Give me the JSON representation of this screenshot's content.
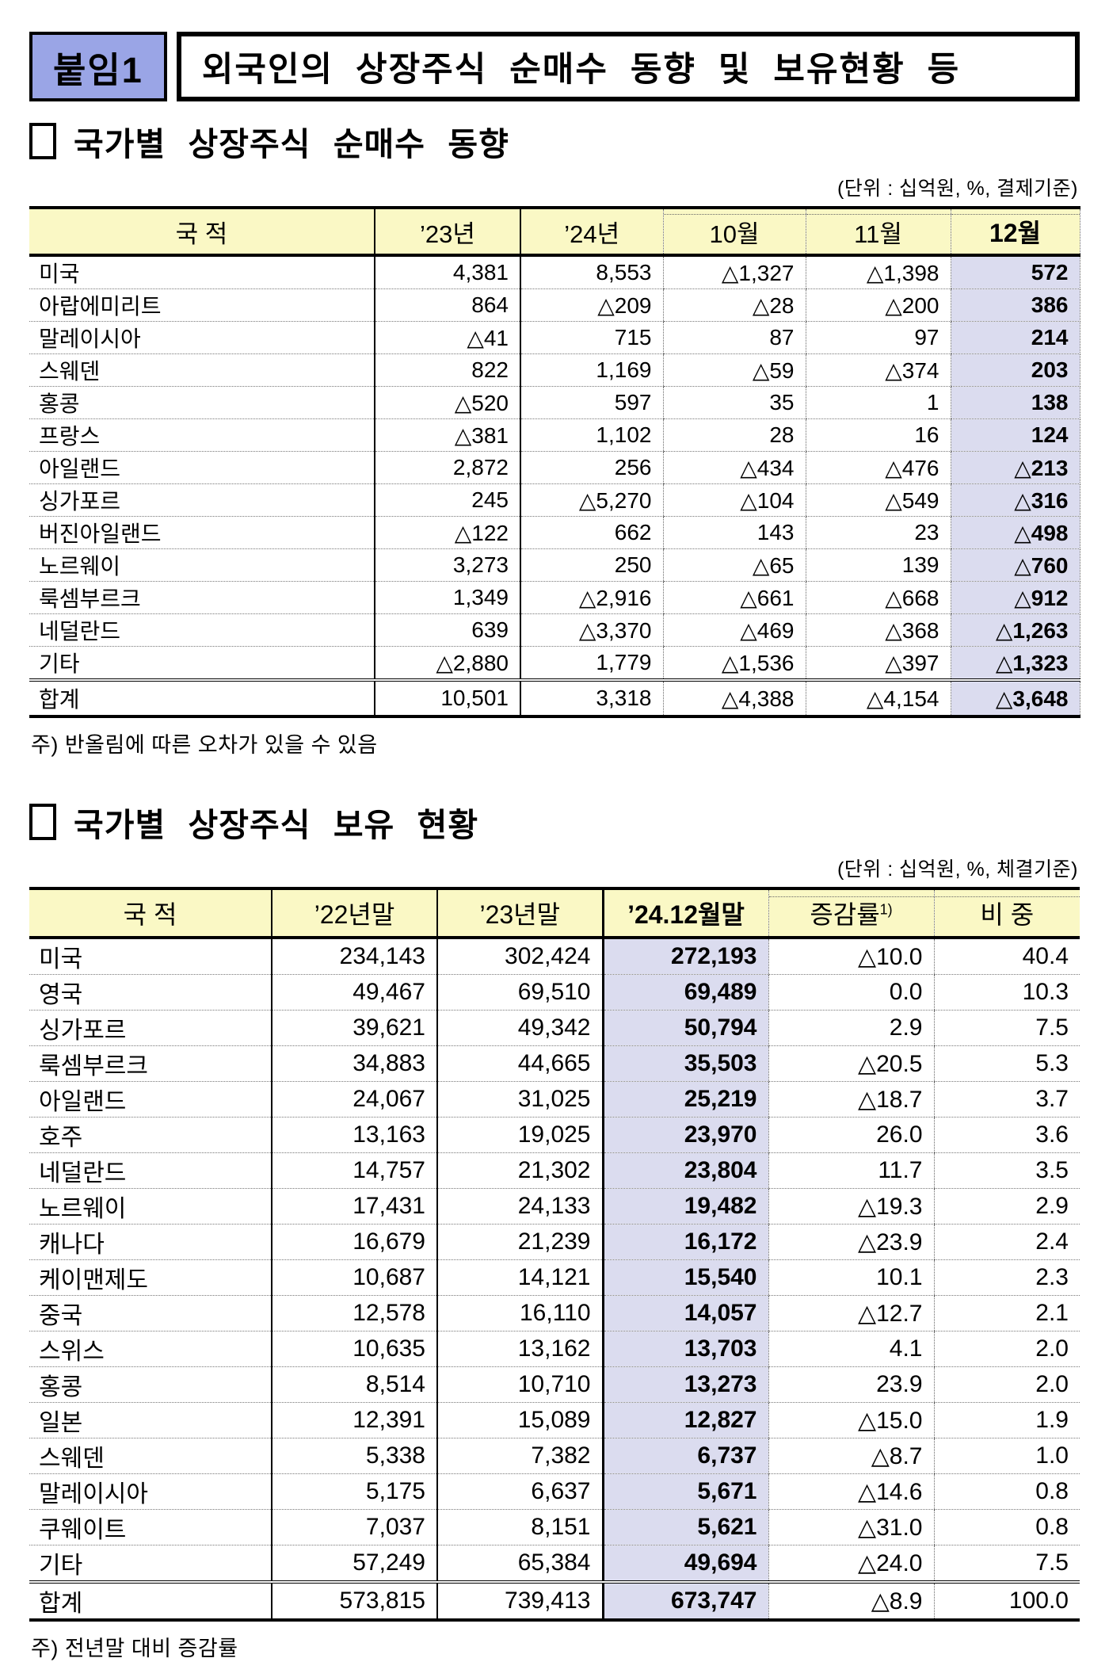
{
  "document": {
    "badge_label": "붙임1",
    "title": "외국인의 상장주식 순매수 동향 및 보유현황 등"
  },
  "colors": {
    "badge_blue": "#9AA5E6",
    "header_yellow": "#FAF8C5",
    "highlight_lavender": "#DBDCEF"
  },
  "section_net_purchase": {
    "heading": "국가별 상장주식 순매수 동향",
    "unit_note": "(단위 : 십억원, %, 결제기준)",
    "footnote": "주) 반올림에 따른 오차가 있을 수 있음",
    "table": {
      "columns": [
        "국 적",
        "’23년",
        "’24년",
        "10월",
        "11월",
        "12월"
      ],
      "rows": [
        [
          "미국",
          "4,381",
          "8,553",
          "△1,327",
          "△1,398",
          "572"
        ],
        [
          "아랍에미리트",
          "864",
          "△209",
          "△28",
          "△200",
          "386"
        ],
        [
          "말레이시아",
          "△41",
          "715",
          "87",
          "97",
          "214"
        ],
        [
          "스웨덴",
          "822",
          "1,169",
          "△59",
          "△374",
          "203"
        ],
        [
          "홍콩",
          "△520",
          "597",
          "35",
          "1",
          "138"
        ],
        [
          "프랑스",
          "△381",
          "1,102",
          "28",
          "16",
          "124"
        ],
        [
          "아일랜드",
          "2,872",
          "256",
          "△434",
          "△476",
          "△213"
        ],
        [
          "싱가포르",
          "245",
          "△5,270",
          "△104",
          "△549",
          "△316"
        ],
        [
          "버진아일랜드",
          "△122",
          "662",
          "143",
          "23",
          "△498"
        ],
        [
          "노르웨이",
          "3,273",
          "250",
          "△65",
          "139",
          "△760"
        ],
        [
          "룩셈부르크",
          "1,349",
          "△2,916",
          "△661",
          "△668",
          "△912"
        ],
        [
          "네덜란드",
          "639",
          "△3,370",
          "△469",
          "△368",
          "△1,263"
        ],
        [
          "기타",
          "△2,880",
          "1,779",
          "△1,536",
          "△397",
          "△1,323"
        ]
      ],
      "total_row": [
        "합계",
        "10,501",
        "3,318",
        "△4,388",
        "△4,154",
        "△3,648"
      ]
    }
  },
  "section_holdings": {
    "heading": "국가별 상장주식 보유 현황",
    "unit_note": "(단위 : 십억원, %, 체결기준)",
    "footnote": "주) 전년말 대비 증감률",
    "table": {
      "columns": [
        "국 적",
        "’22년말",
        "’23년말",
        "’24.12월말",
        {
          "label": "증감률",
          "sup": "1)"
        },
        "비 중"
      ],
      "rows": [
        [
          "미국",
          "234,143",
          "302,424",
          "272,193",
          "△10.0",
          "40.4"
        ],
        [
          "영국",
          "49,467",
          "69,510",
          "69,489",
          "0.0",
          "10.3"
        ],
        [
          "싱가포르",
          "39,621",
          "49,342",
          "50,794",
          "2.9",
          "7.5"
        ],
        [
          "룩셈부르크",
          "34,883",
          "44,665",
          "35,503",
          "△20.5",
          "5.3"
        ],
        [
          "아일랜드",
          "24,067",
          "31,025",
          "25,219",
          "△18.7",
          "3.7"
        ],
        [
          "호주",
          "13,163",
          "19,025",
          "23,970",
          "26.0",
          "3.6"
        ],
        [
          "네덜란드",
          "14,757",
          "21,302",
          "23,804",
          "11.7",
          "3.5"
        ],
        [
          "노르웨이",
          "17,431",
          "24,133",
          "19,482",
          "△19.3",
          "2.9"
        ],
        [
          "캐나다",
          "16,679",
          "21,239",
          "16,172",
          "△23.9",
          "2.4"
        ],
        [
          "케이맨제도",
          "10,687",
          "14,121",
          "15,540",
          "10.1",
          "2.3"
        ],
        [
          "중국",
          "12,578",
          "16,110",
          "14,057",
          "△12.7",
          "2.1"
        ],
        [
          "스위스",
          "10,635",
          "13,162",
          "13,703",
          "4.1",
          "2.0"
        ],
        [
          "홍콩",
          "8,514",
          "10,710",
          "13,273",
          "23.9",
          "2.0"
        ],
        [
          "일본",
          "12,391",
          "15,089",
          "12,827",
          "△15.0",
          "1.9"
        ],
        [
          "스웨덴",
          "5,338",
          "7,382",
          "6,737",
          "△8.7",
          "1.0"
        ],
        [
          "말레이시아",
          "5,175",
          "6,637",
          "5,671",
          "△14.6",
          "0.8"
        ],
        [
          "쿠웨이트",
          "7,037",
          "8,151",
          "5,621",
          "△31.0",
          "0.8"
        ],
        [
          "기타",
          "57,249",
          "65,384",
          "49,694",
          "△24.0",
          "7.5"
        ]
      ],
      "total_row": [
        "합계",
        "573,815",
        "739,413",
        "673,747",
        "△8.9",
        "100.0"
      ]
    }
  }
}
